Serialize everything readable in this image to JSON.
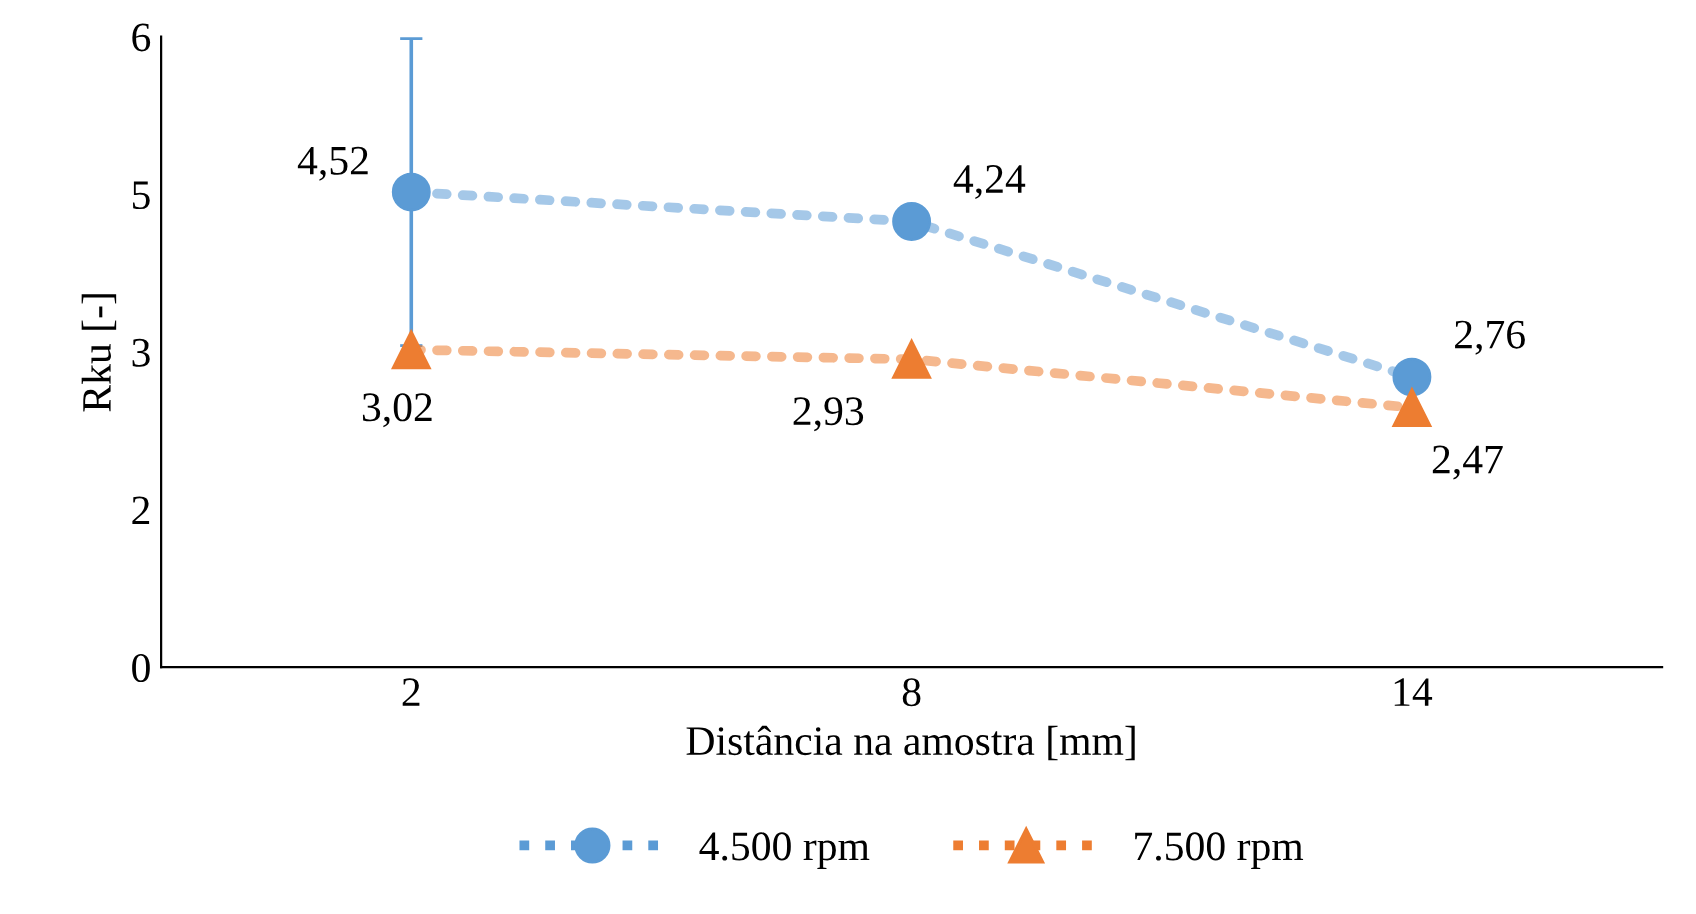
{
  "chart_data": {
    "type": "line",
    "xlabel": "Distância na amostra [mm]",
    "ylabel": "Rku [-]",
    "categories": [
      "2",
      "8",
      "14"
    ],
    "ylim": [
      0,
      6
    ],
    "yticks": [
      0,
      {
        "value": 1.5,
        "label": "2"
      },
      3,
      {
        "value": 4.5,
        "label": "5"
      },
      6
    ],
    "series": [
      {
        "name": "4.500 rpm",
        "color": "#5b9bd5",
        "marker": "circle",
        "line_style": "dotted",
        "values": [
          4.52,
          4.24,
          2.76
        ],
        "value_labels": [
          "4,52",
          "4,24",
          "2,76"
        ],
        "errors": [
          1.46,
          null,
          null
        ]
      },
      {
        "name": "7.500 rpm",
        "color": "#ed7d31",
        "marker": "triangle",
        "line_style": "dotted",
        "values": [
          3.02,
          2.93,
          2.47
        ],
        "value_labels": [
          "3,02",
          "2,93",
          "2,47"
        ]
      }
    ],
    "grid": false,
    "legend": "bottom"
  }
}
